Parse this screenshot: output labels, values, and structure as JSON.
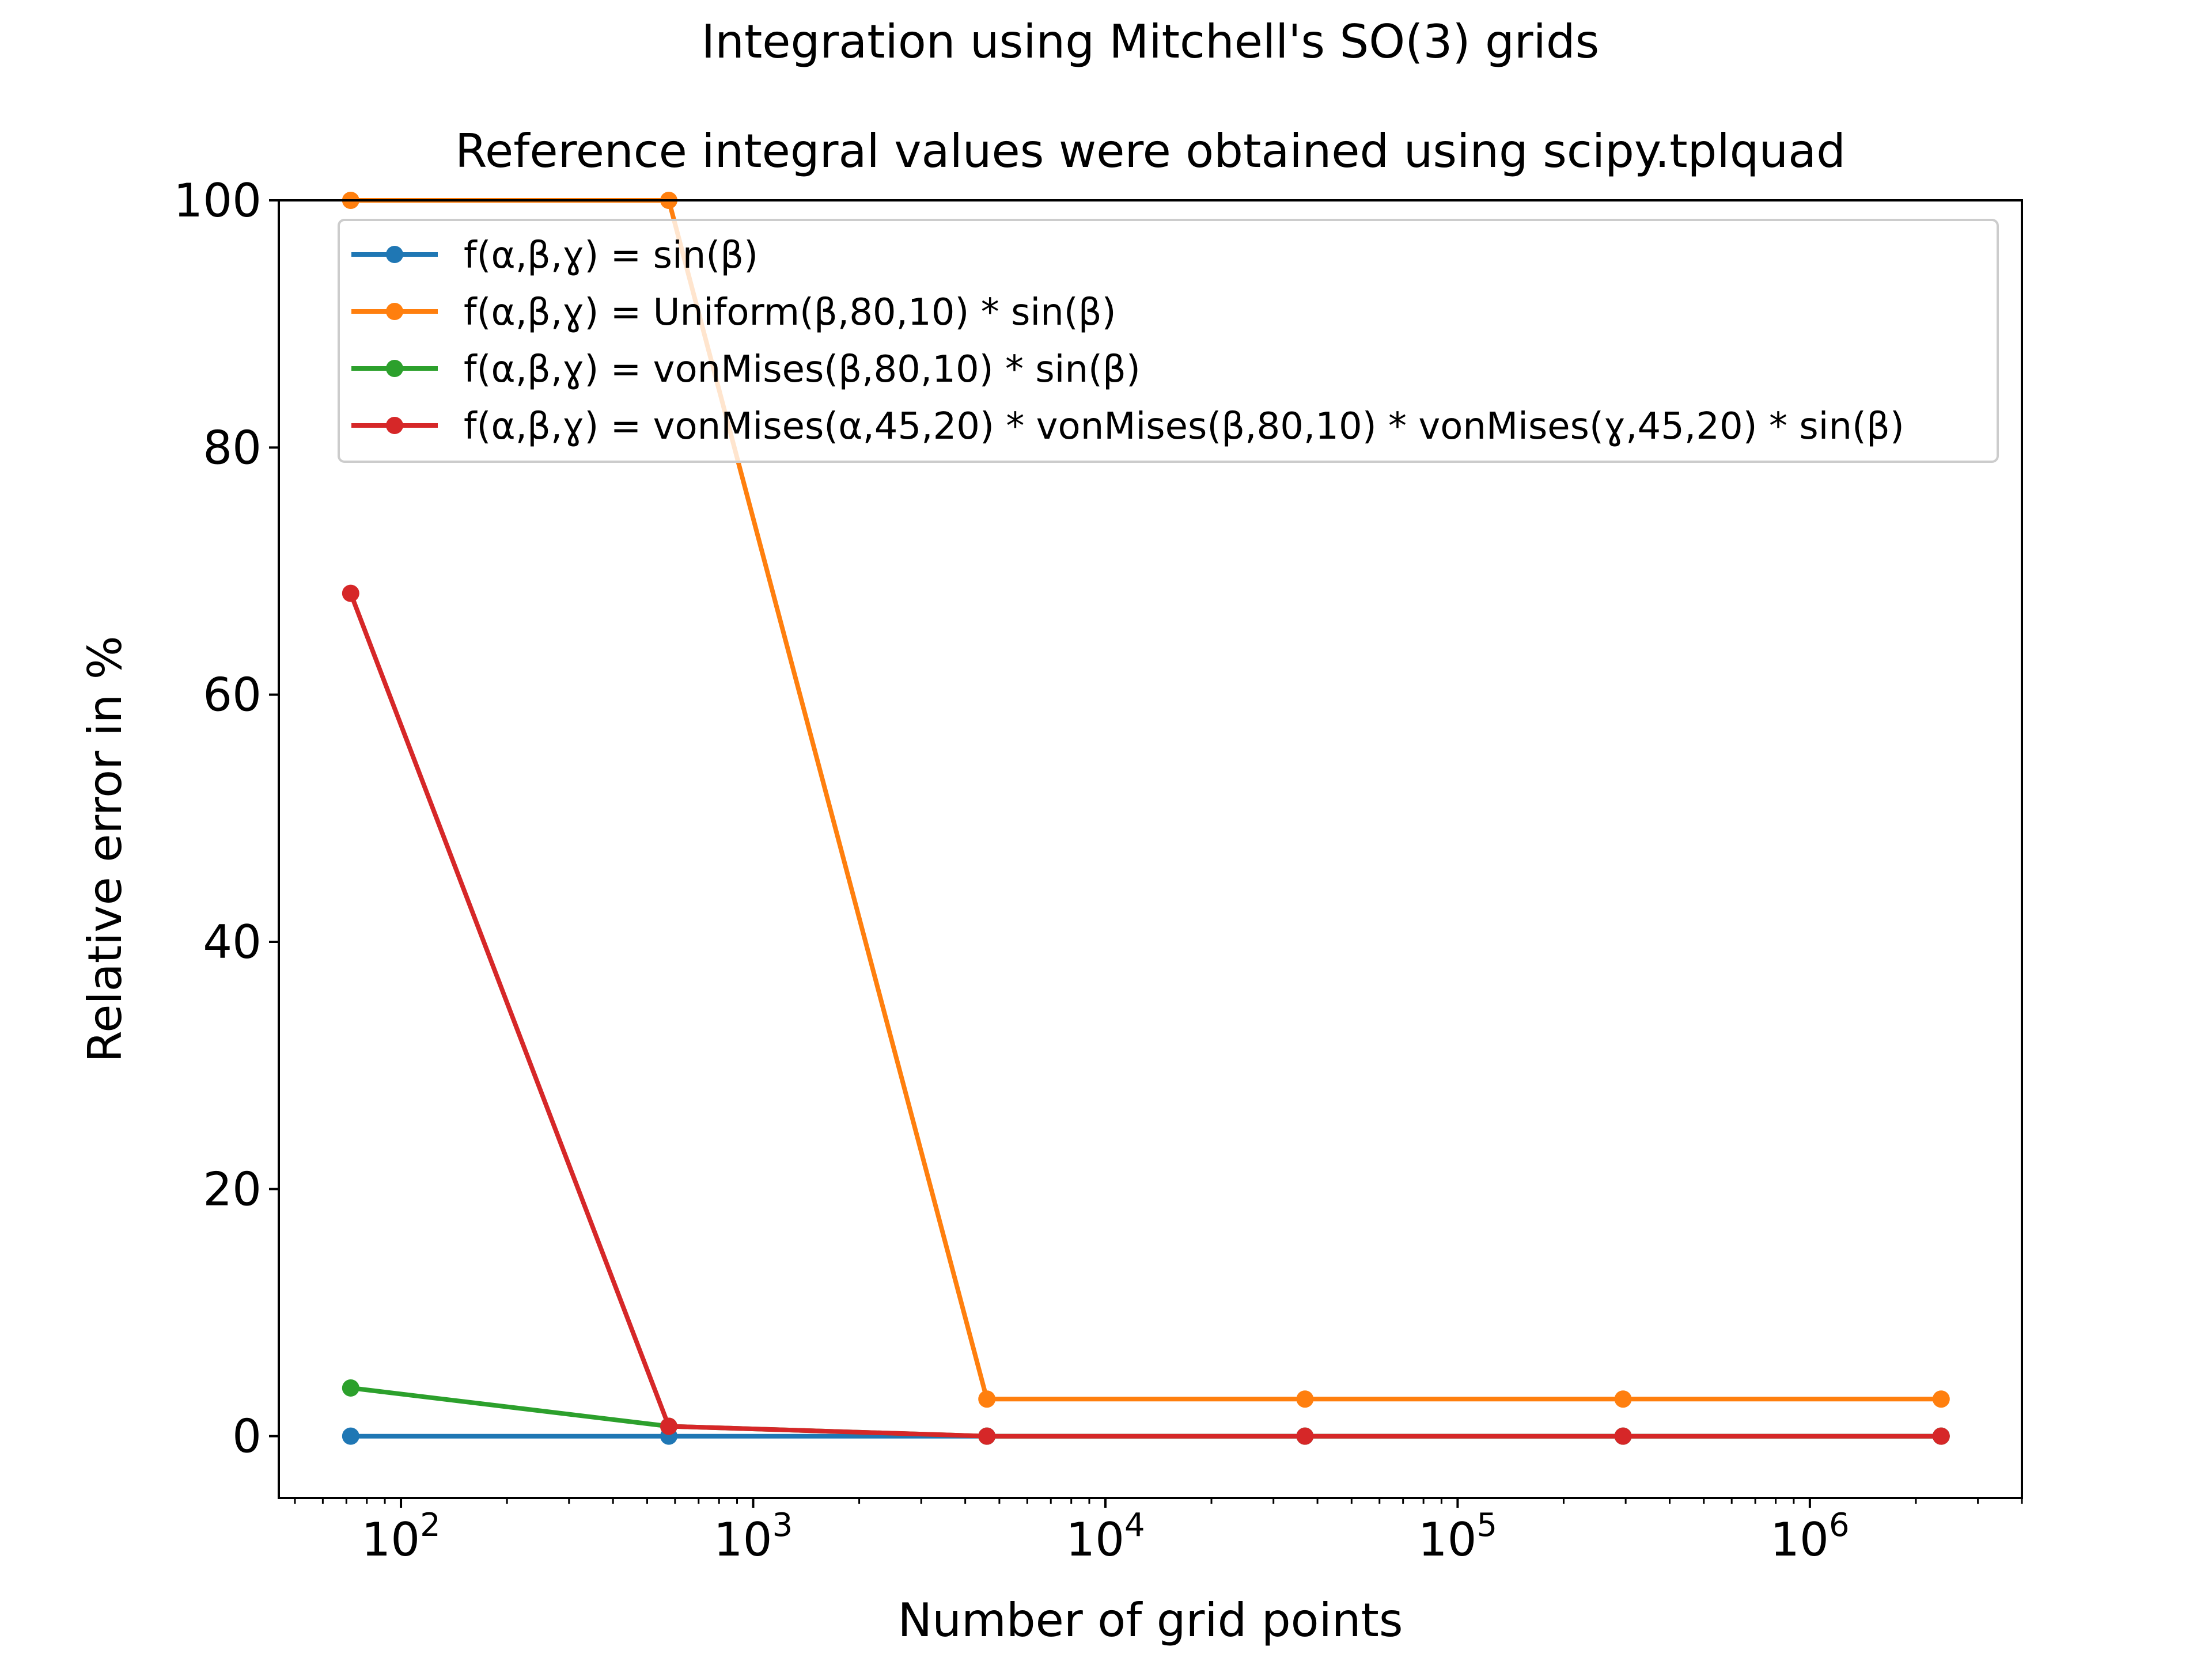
{
  "chart_data": {
    "type": "line",
    "title": "Integration using Mitchell's SO(3) grids",
    "subtitle": "Reference integral values were obtained using scipy.tplquad",
    "xlabel": "Number of grid points",
    "ylabel": "Relative error in %",
    "x_scale": "log",
    "xlim": [
      45,
      4000000
    ],
    "ylim": [
      -5,
      100
    ],
    "x_ticks": [
      {
        "value": 100,
        "base": "10",
        "exp": "2"
      },
      {
        "value": 1000,
        "base": "10",
        "exp": "3"
      },
      {
        "value": 10000,
        "base": "10",
        "exp": "4"
      },
      {
        "value": 100000,
        "base": "10",
        "exp": "5"
      },
      {
        "value": 1000000,
        "base": "10",
        "exp": "6"
      }
    ],
    "y_ticks": [
      0,
      20,
      40,
      60,
      80,
      100
    ],
    "grid": false,
    "legend_position": "top-right",
    "x": [
      72,
      576,
      4608,
      36864,
      294912,
      2359296
    ],
    "series": [
      {
        "name": "f(α,β,ɣ) = sin(β)",
        "color": "#1f77b4",
        "values": [
          0.0,
          0.0,
          0.0,
          0.0,
          0.0,
          0.0
        ]
      },
      {
        "name": "f(α,β,ɣ) = Uniform(β,80,10) * sin(β)",
        "color": "#ff7f0e",
        "values": [
          100.0,
          100.0,
          3.0,
          3.0,
          3.0,
          3.0
        ]
      },
      {
        "name": "f(α,β,ɣ) = vonMises(β,80,10) * sin(β)",
        "color": "#2ca02c",
        "values": [
          3.9,
          0.8,
          0.0,
          0.0,
          0.0,
          0.0
        ]
      },
      {
        "name": "f(α,β,ɣ) = vonMises(α,45,20) * vonMises(β,80,10) * vonMises(ɣ,45,20) * sin(β)",
        "color": "#d62728",
        "values": [
          68.2,
          0.8,
          0.0,
          0.0,
          0.0,
          0.0
        ]
      }
    ]
  }
}
